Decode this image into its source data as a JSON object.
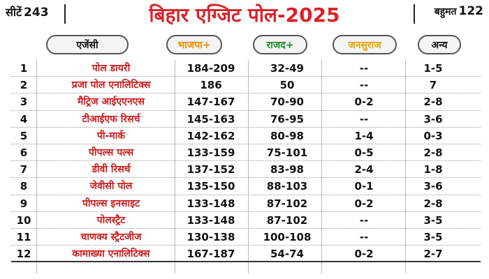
{
  "header": {
    "seats_label": "सीटें",
    "seats_value": "243",
    "title": "बिहार एग्जिट पोल-2025",
    "majority_label": "बहुमत",
    "majority_value": "122"
  },
  "columns": {
    "agency": "एजेंसी",
    "bjp": "भाजपा+",
    "rjd": "राजद+",
    "jansuraaj": "जनसुराज",
    "others": "अन्य"
  },
  "colors": {
    "title": "#d8232a",
    "agency_text": "#c81e1e",
    "bjp_header": "#f08a00",
    "rjd_header": "#1c8a2a",
    "jansuraaj_header": "#e3a400"
  },
  "rows": [
    {
      "num": "1",
      "agency": "पोल डायरी",
      "bjp": "184-209",
      "rjd": "32-49",
      "js": "--",
      "oth": "1-5"
    },
    {
      "num": "2",
      "agency": "प्रजा पोल एनालिटिक्स",
      "bjp": "186",
      "rjd": "50",
      "js": "--",
      "oth": "7"
    },
    {
      "num": "3",
      "agency": "मैट्रिज आईएएनएस",
      "bjp": "147-167",
      "rjd": "70-90",
      "js": "0-2",
      "oth": "2-8"
    },
    {
      "num": "4",
      "agency": "टीआईएफ रिसर्च",
      "bjp": "145-163",
      "rjd": "76-95",
      "js": "--",
      "oth": "3-6"
    },
    {
      "num": "5",
      "agency": "पी-मार्क",
      "bjp": "142-162",
      "rjd": "80-98",
      "js": "1-4",
      "oth": "0-3"
    },
    {
      "num": "6",
      "agency": "पीपल्स पल्स",
      "bjp": "133-159",
      "rjd": "75-101",
      "js": "0-5",
      "oth": "2-8"
    },
    {
      "num": "7",
      "agency": "डीवी रिसर्च",
      "bjp": "137-152",
      "rjd": "83-98",
      "js": "2-4",
      "oth": "1-8"
    },
    {
      "num": "8",
      "agency": "जेवीसी पोल",
      "bjp": "135-150",
      "rjd": "88-103",
      "js": "0-1",
      "oth": "3-6"
    },
    {
      "num": "9",
      "agency": "पीपल्स इनसाइट",
      "bjp": "133-148",
      "rjd": "87-102",
      "js": "0-2",
      "oth": "2-8"
    },
    {
      "num": "10",
      "agency": "पोलस्ट्रैट",
      "bjp": "133-148",
      "rjd": "87-102",
      "js": "--",
      "oth": "3-5"
    },
    {
      "num": "11",
      "agency": "चाणक्य स्ट्रैटजीज",
      "bjp": "130-138",
      "rjd": "100-108",
      "js": "--",
      "oth": "3-5"
    },
    {
      "num": "12",
      "agency": "कामाख्या एनालिटिक्स",
      "bjp": "167-187",
      "rjd": "54-74",
      "js": "0-2",
      "oth": "2-7"
    }
  ]
}
